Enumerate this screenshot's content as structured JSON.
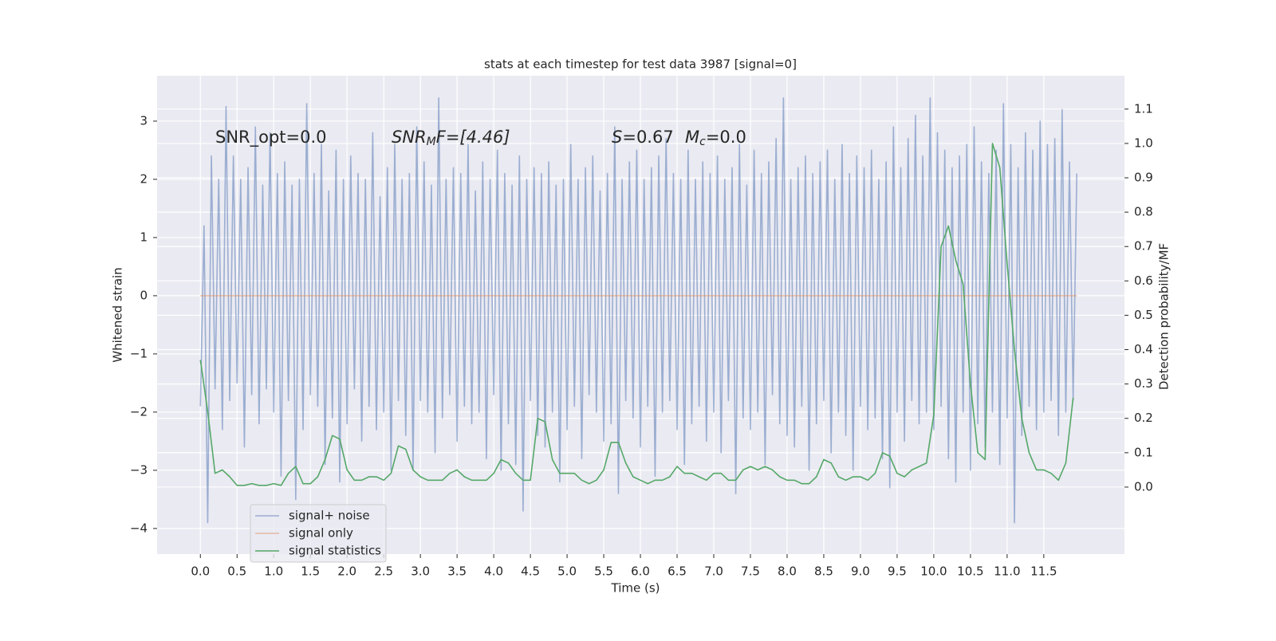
{
  "chart_data": {
    "type": "line",
    "title": "stats at each timestep for test data 3987 [signal=0]",
    "xlabel": "Time (s)",
    "ylabel": "Whitened strain",
    "y2label": "Detection probability/MF",
    "annotations": [
      [
        "SNR_opt=0.0"
      ],
      [
        "SNR",
        "M",
        "F=[4.46]"
      ],
      [
        "S",
        "=0.67"
      ],
      [
        "M",
        "c",
        "=0.0"
      ]
    ],
    "xlim": [
      -0.59,
      12.6
    ],
    "ylim": [
      -4.44,
      3.78
    ],
    "y2lim": [
      -0.195,
      1.197
    ],
    "grid": true,
    "legend": "lower left",
    "xticks": [
      {
        "value": 0,
        "label": "0.0"
      },
      0.5,
      {
        "value": 1,
        "label": "1.0"
      },
      1.5,
      {
        "value": 2,
        "label": "2.0"
      },
      2.5,
      {
        "value": 3,
        "label": "3.0"
      },
      3.5,
      {
        "value": 4,
        "label": "4.0"
      },
      4.5,
      {
        "value": 5,
        "label": "5.0"
      },
      5.5,
      {
        "value": 6,
        "label": "6.0"
      },
      6.5,
      {
        "value": 7,
        "label": "7.0"
      },
      7.5,
      {
        "value": 8,
        "label": "8.0"
      },
      8.5,
      {
        "value": 9,
        "label": "9.0"
      },
      9.5,
      {
        "value": 10,
        "label": "10.0"
      },
      10.5,
      {
        "value": 11,
        "label": "11.0"
      },
      11.5
    ],
    "yticks": [
      {
        "value": -4,
        "label": "−4"
      },
      {
        "value": -3,
        "label": "−3"
      },
      {
        "value": -2,
        "label": "−2"
      },
      {
        "value": -1,
        "label": "−1"
      },
      0,
      1,
      2,
      3
    ],
    "y2ticks": [
      {
        "value": 0,
        "label": "0.0"
      },
      0.1,
      0.2,
      0.3,
      0.4,
      0.5,
      0.6,
      0.7,
      0.8,
      0.9,
      {
        "value": 1,
        "label": "1.0"
      },
      1.1
    ],
    "series": [
      {
        "name": "signal+ noise",
        "color": "#4c72b0",
        "alpha": 0.5,
        "x": [
          0,
          0.05,
          0.1,
          0.15,
          0.2,
          0.25,
          0.3,
          0.35,
          0.4,
          0.45,
          0.5,
          0.55,
          0.6,
          0.65,
          0.7,
          0.75,
          0.8,
          0.85,
          0.9,
          0.95,
          1,
          1.05,
          1.1,
          1.15,
          1.2,
          1.25,
          1.3,
          1.35,
          1.4,
          1.45,
          1.5,
          1.55,
          1.6,
          1.65,
          1.7,
          1.75,
          1.8,
          1.85,
          1.9,
          1.95,
          2,
          2.05,
          2.1,
          2.15,
          2.2,
          2.25,
          2.3,
          2.35,
          2.4,
          2.45,
          2.5,
          2.55,
          2.6,
          2.65,
          2.7,
          2.75,
          2.8,
          2.85,
          2.9,
          2.95,
          3,
          3.05,
          3.1,
          3.15,
          3.2,
          3.25,
          3.3,
          3.35,
          3.4,
          3.45,
          3.5,
          3.55,
          3.6,
          3.65,
          3.7,
          3.75,
          3.8,
          3.85,
          3.9,
          3.95,
          4,
          4.05,
          4.1,
          4.15,
          4.2,
          4.25,
          4.3,
          4.35,
          4.4,
          4.45,
          4.5,
          4.55,
          4.6,
          4.65,
          4.7,
          4.75,
          4.8,
          4.85,
          4.9,
          4.95,
          5,
          5.05,
          5.1,
          5.15,
          5.2,
          5.25,
          5.3,
          5.35,
          5.4,
          5.45,
          5.5,
          5.55,
          5.6,
          5.65,
          5.7,
          5.75,
          5.8,
          5.85,
          5.9,
          5.95,
          6,
          6.05,
          6.1,
          6.15,
          6.2,
          6.25,
          6.3,
          6.35,
          6.4,
          6.45,
          6.5,
          6.55,
          6.6,
          6.65,
          6.7,
          6.75,
          6.8,
          6.85,
          6.9,
          6.95,
          7,
          7.05,
          7.1,
          7.15,
          7.2,
          7.25,
          7.3,
          7.35,
          7.4,
          7.45,
          7.5,
          7.55,
          7.6,
          7.65,
          7.7,
          7.75,
          7.8,
          7.85,
          7.9,
          7.95,
          8,
          8.05,
          8.1,
          8.15,
          8.2,
          8.25,
          8.3,
          8.35,
          8.4,
          8.45,
          8.5,
          8.55,
          8.6,
          8.65,
          8.7,
          8.75,
          8.8,
          8.85,
          8.9,
          8.95,
          9,
          9.05,
          9.1,
          9.15,
          9.2,
          9.25,
          9.3,
          9.35,
          9.4,
          9.45,
          9.5,
          9.55,
          9.6,
          9.65,
          9.7,
          9.75,
          9.8,
          9.85,
          9.9,
          9.95,
          10,
          10.05,
          10.1,
          10.15,
          10.2,
          10.25,
          10.3,
          10.35,
          10.4,
          10.45,
          10.5,
          10.55,
          10.6,
          10.65,
          10.7,
          10.75,
          10.8,
          10.85,
          10.9,
          10.95,
          11,
          11.05,
          11.1,
          11.15,
          11.2,
          11.25,
          11.3,
          11.35,
          11.4,
          11.45,
          11.5,
          11.55,
          11.6,
          11.65,
          11.7,
          11.75,
          11.8,
          11.85,
          11.9,
          11.95
        ],
        "values": [
          -1.9,
          1.2,
          -3.9,
          2.4,
          -1.6,
          2.0,
          -2.3,
          3.25,
          -1.8,
          2.4,
          -1.5,
          2.0,
          -2.6,
          2.2,
          -1.7,
          2.9,
          -2.2,
          1.9,
          -1.6,
          2.8,
          -2.0,
          2.1,
          -3.1,
          2.3,
          -1.8,
          1.9,
          -3.5,
          2.0,
          -2.3,
          3.3,
          -1.7,
          2.1,
          -1.9,
          2.6,
          -2.9,
          1.8,
          -2.1,
          2.5,
          -3.2,
          2.0,
          -2.2,
          2.4,
          -1.6,
          2.1,
          -2.5,
          2.0,
          -1.9,
          2.8,
          -2.3,
          1.7,
          -2.0,
          2.2,
          -3.0,
          2.6,
          -1.8,
          2.0,
          -2.4,
          2.1,
          -3.0,
          2.9,
          -1.8,
          2.3,
          -2.0,
          1.9,
          -2.7,
          3.4,
          -2.1,
          2.0,
          -1.7,
          2.2,
          -2.5,
          2.1,
          -1.9,
          2.6,
          -2.2,
          1.8,
          -2.0,
          2.3,
          -2.8,
          2.0,
          -1.7,
          2.5,
          -3.0,
          2.1,
          -2.2,
          1.9,
          -2.9,
          2.4,
          -3.7,
          2.0,
          -1.8,
          2.2,
          -2.4,
          2.1,
          -2.6,
          2.3,
          -2.0,
          1.9,
          -3.2,
          2.0,
          -2.3,
          2.6,
          -1.9,
          2.0,
          -2.8,
          2.2,
          -1.7,
          2.4,
          -2.0,
          1.8,
          -2.5,
          2.1,
          -2.2,
          2.9,
          -3.4,
          2.0,
          -1.8,
          2.3,
          -2.1,
          2.5,
          -2.6,
          2.0,
          -1.9,
          2.2,
          -3.1,
          2.4,
          -2.0,
          2.7,
          -1.8,
          2.1,
          -2.3,
          2.0,
          -2.9,
          2.5,
          -2.2,
          2.0,
          -1.9,
          2.3,
          -2.5,
          2.1,
          -2.0,
          2.4,
          -2.7,
          2.0,
          -1.8,
          2.2,
          -3.4,
          2.6,
          -2.1,
          1.9,
          -2.3,
          2.5,
          -2.0,
          2.1,
          -2.9,
          2.3,
          -1.7,
          2.7,
          -2.2,
          3.4,
          -2.4,
          2.0,
          -2.6,
          2.2,
          -1.9,
          2.4,
          -3.0,
          2.1,
          -2.2,
          2.3,
          -1.8,
          2.5,
          -2.7,
          2.0,
          -2.0,
          2.6,
          -2.4,
          2.1,
          -3.0,
          2.4,
          -1.9,
          2.2,
          -2.3,
          2.5,
          -2.1,
          2.0,
          -2.8,
          2.3,
          -3.3,
          2.9,
          -2.0,
          2.2,
          -2.5,
          2.7,
          -1.8,
          3.1,
          -2.2,
          2.4,
          -2.0,
          3.4,
          -2.3,
          2.8,
          -1.9,
          2.5,
          -2.8,
          2.2,
          -3.2,
          2.4,
          -2.0,
          2.6,
          -3.0,
          2.9,
          -2.2,
          2.3,
          -2.6,
          2.1,
          -2.0,
          2.5,
          -2.9,
          3.3,
          -2.1,
          2.6,
          -3.9,
          2.2,
          -2.4,
          2.8,
          -1.9,
          2.5,
          -2.3,
          3.0,
          -2.0,
          2.6,
          -1.8,
          2.7,
          -2.4,
          3.2,
          -2.0,
          2.3,
          -1.8,
          2.1
        ]
      },
      {
        "name": "signal only",
        "color": "#dd8452",
        "alpha": 0.5,
        "x": [
          0,
          11.95
        ],
        "values": [
          0,
          0
        ]
      },
      {
        "name": "signal statistics",
        "color": "#55a868",
        "alpha": 1,
        "axis": "y2",
        "x": [
          0,
          0.1,
          0.2,
          0.3,
          0.4,
          0.5,
          0.6,
          0.7,
          0.8,
          0.9,
          1,
          1.1,
          1.2,
          1.3,
          1.4,
          1.5,
          1.6,
          1.7,
          1.8,
          1.9,
          2,
          2.1,
          2.2,
          2.3,
          2.4,
          2.5,
          2.6,
          2.7,
          2.8,
          2.9,
          3,
          3.1,
          3.2,
          3.3,
          3.4,
          3.5,
          3.6,
          3.7,
          3.8,
          3.9,
          4,
          4.1,
          4.2,
          4.3,
          4.4,
          4.5,
          4.6,
          4.7,
          4.8,
          4.9,
          5,
          5.1,
          5.2,
          5.3,
          5.4,
          5.5,
          5.6,
          5.7,
          5.8,
          5.9,
          6,
          6.1,
          6.2,
          6.3,
          6.4,
          6.5,
          6.6,
          6.7,
          6.8,
          6.9,
          7,
          7.1,
          7.2,
          7.3,
          7.4,
          7.5,
          7.6,
          7.7,
          7.8,
          7.9,
          8,
          8.1,
          8.2,
          8.3,
          8.4,
          8.5,
          8.6,
          8.7,
          8.8,
          8.9,
          9,
          9.1,
          9.2,
          9.3,
          9.4,
          9.5,
          9.6,
          9.7,
          9.8,
          9.9,
          10,
          10.1,
          10.2,
          10.3,
          10.4,
          10.5,
          10.6,
          10.7,
          10.8,
          10.9,
          11,
          11.1,
          11.2,
          11.3,
          11.4,
          11.5,
          11.6,
          11.7,
          11.8,
          11.9
        ],
        "values": [
          0.37,
          0.22,
          0.04,
          0.05,
          0.03,
          0.005,
          0.005,
          0.01,
          0.005,
          0.005,
          0.01,
          0.005,
          0.04,
          0.06,
          0.01,
          0.01,
          0.03,
          0.08,
          0.15,
          0.14,
          0.05,
          0.02,
          0.02,
          0.03,
          0.03,
          0.02,
          0.04,
          0.12,
          0.11,
          0.05,
          0.03,
          0.02,
          0.02,
          0.02,
          0.04,
          0.05,
          0.03,
          0.02,
          0.02,
          0.02,
          0.04,
          0.08,
          0.07,
          0.04,
          0.02,
          0.02,
          0.2,
          0.19,
          0.08,
          0.04,
          0.04,
          0.04,
          0.02,
          0.01,
          0.02,
          0.05,
          0.13,
          0.13,
          0.07,
          0.03,
          0.02,
          0.01,
          0.02,
          0.02,
          0.03,
          0.06,
          0.04,
          0.04,
          0.03,
          0.02,
          0.04,
          0.04,
          0.02,
          0.02,
          0.05,
          0.06,
          0.05,
          0.06,
          0.05,
          0.03,
          0.02,
          0.02,
          0.01,
          0.01,
          0.03,
          0.08,
          0.07,
          0.03,
          0.02,
          0.03,
          0.03,
          0.02,
          0.04,
          0.1,
          0.09,
          0.04,
          0.03,
          0.05,
          0.06,
          0.07,
          0.21,
          0.7,
          0.76,
          0.66,
          0.59,
          0.3,
          0.1,
          0.08,
          1.0,
          0.93,
          0.65,
          0.4,
          0.2,
          0.1,
          0.05,
          0.05,
          0.04,
          0.02,
          0.07,
          0.26
        ]
      }
    ]
  }
}
